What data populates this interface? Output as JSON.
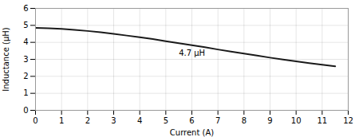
{
  "chart_data": {
    "type": "line",
    "xlabel": "Current (A)",
    "ylabel": "Inductance (μH)",
    "x": [
      0,
      0.5,
      1.0,
      1.5,
      2.0,
      2.5,
      3.0,
      3.5,
      4.0,
      4.5,
      5.0,
      5.5,
      6.0,
      6.5,
      7.0,
      7.5,
      8.0,
      8.5,
      9.0,
      9.5,
      10.0,
      10.5,
      11.0,
      11.5
    ],
    "values": [
      4.85,
      4.83,
      4.79,
      4.74,
      4.67,
      4.59,
      4.5,
      4.4,
      4.3,
      4.19,
      4.07,
      3.95,
      3.83,
      3.71,
      3.58,
      3.46,
      3.34,
      3.22,
      3.1,
      2.99,
      2.88,
      2.78,
      2.68,
      2.59
    ],
    "color": "#1a1a1a",
    "xlim": [
      0,
      12
    ],
    "ylim": [
      0,
      6
    ],
    "xticks": [
      0,
      1,
      2,
      3,
      4,
      5,
      6,
      7,
      8,
      9,
      10,
      11,
      12
    ],
    "yticks": [
      0,
      1,
      2,
      3,
      4,
      5,
      6
    ],
    "grid": true,
    "annotations": [
      {
        "text": "4.7 μH",
        "x": 5.5,
        "y": 3.55
      }
    ]
  }
}
